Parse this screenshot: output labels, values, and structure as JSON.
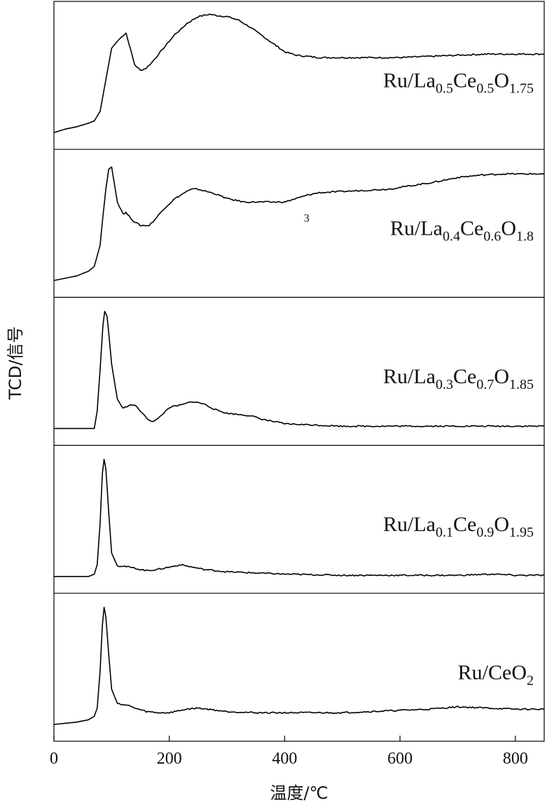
{
  "chart_data": {
    "type": "line",
    "xlabel": "温度/℃",
    "ylabel": "TCD/信号",
    "xlim": [
      0,
      850
    ],
    "xticks": [
      0,
      200,
      400,
      600,
      800
    ],
    "grid": false,
    "layout": "stacked panels",
    "series": [
      {
        "name": "Ru/La0.5Ce0.5O1.75",
        "label_parts": [
          {
            "t": "Ru/La",
            "sub": false
          },
          {
            "t": "0.5",
            "sub": true
          },
          {
            "t": "Ce",
            "sub": false
          },
          {
            "t": "0.5",
            "sub": true
          },
          {
            "t": "O",
            "sub": false
          },
          {
            "t": "1.75",
            "sub": true
          }
        ],
        "x": [
          0,
          20,
          40,
          60,
          70,
          80,
          90,
          100,
          110,
          120,
          125,
          130,
          140,
          150,
          160,
          170,
          180,
          190,
          200,
          210,
          220,
          230,
          240,
          250,
          260,
          270,
          280,
          300,
          320,
          340,
          360,
          380,
          400,
          420,
          440,
          460,
          480,
          500,
          540,
          580,
          600,
          650,
          700,
          750,
          800,
          850
        ],
        "y": [
          0.0,
          0.03,
          0.05,
          0.08,
          0.1,
          0.18,
          0.45,
          0.72,
          0.78,
          0.83,
          0.85,
          0.76,
          0.58,
          0.53,
          0.55,
          0.6,
          0.66,
          0.72,
          0.78,
          0.84,
          0.88,
          0.93,
          0.96,
          0.99,
          1.0,
          1.01,
          1.0,
          0.99,
          0.96,
          0.9,
          0.83,
          0.76,
          0.69,
          0.66,
          0.65,
          0.64,
          0.64,
          0.64,
          0.64,
          0.64,
          0.64,
          0.65,
          0.66,
          0.67,
          0.67,
          0.67
        ]
      },
      {
        "name": "Ru/La0.4Ce0.6O1.8",
        "label_parts": [
          {
            "t": "Ru/La",
            "sub": false
          },
          {
            "t": "0.4",
            "sub": true
          },
          {
            "t": "Ce",
            "sub": false
          },
          {
            "t": "0.6",
            "sub": true
          },
          {
            "t": "O",
            "sub": false
          },
          {
            "t": "1.8",
            "sub": true
          }
        ],
        "x": [
          0,
          20,
          40,
          60,
          70,
          80,
          85,
          90,
          95,
          100,
          105,
          110,
          120,
          125,
          130,
          140,
          150,
          165,
          175,
          190,
          210,
          230,
          240,
          250,
          280,
          300,
          330,
          360,
          400,
          420,
          440,
          460,
          500,
          540,
          580,
          620,
          660,
          700,
          740,
          780,
          810,
          850
        ],
        "y": [
          0.0,
          0.02,
          0.04,
          0.08,
          0.12,
          0.3,
          0.55,
          0.78,
          0.95,
          0.97,
          0.82,
          0.67,
          0.57,
          0.58,
          0.55,
          0.5,
          0.47,
          0.47,
          0.52,
          0.61,
          0.7,
          0.76,
          0.78,
          0.78,
          0.74,
          0.7,
          0.67,
          0.67,
          0.67,
          0.7,
          0.73,
          0.75,
          0.76,
          0.77,
          0.78,
          0.81,
          0.84,
          0.88,
          0.9,
          0.91,
          0.91,
          0.91
        ]
      },
      {
        "name": "Ru/La0.3Ce0.7O1.85",
        "label_parts": [
          {
            "t": "Ru/La",
            "sub": false
          },
          {
            "t": "0.3",
            "sub": true
          },
          {
            "t": "Ce",
            "sub": false
          },
          {
            "t": "0.7",
            "sub": true
          },
          {
            "t": "O",
            "sub": false
          },
          {
            "t": "1.85",
            "sub": true
          }
        ],
        "x": [
          0,
          20,
          40,
          60,
          70,
          75,
          80,
          85,
          88,
          92,
          95,
          100,
          110,
          120,
          130,
          140,
          150,
          160,
          170,
          180,
          190,
          200,
          220,
          240,
          260,
          280,
          300,
          320,
          340,
          360,
          380,
          400,
          450,
          500,
          600,
          700,
          800,
          850
        ],
        "y": [
          0.0,
          0.0,
          0.0,
          0.0,
          0.0,
          0.15,
          0.5,
          0.88,
          1.0,
          0.96,
          0.82,
          0.55,
          0.25,
          0.17,
          0.2,
          0.2,
          0.15,
          0.09,
          0.06,
          0.08,
          0.13,
          0.18,
          0.2,
          0.23,
          0.21,
          0.16,
          0.13,
          0.12,
          0.11,
          0.08,
          0.06,
          0.04,
          0.03,
          0.02,
          0.02,
          0.02,
          0.02,
          0.02
        ]
      },
      {
        "name": "Ru/La0.1Ce0.9O1.95",
        "label_parts": [
          {
            "t": "Ru/La",
            "sub": false
          },
          {
            "t": "0.1",
            "sub": true
          },
          {
            "t": "Ce",
            "sub": false
          },
          {
            "t": "0.9",
            "sub": true
          },
          {
            "t": "O",
            "sub": false
          },
          {
            "t": "1.95",
            "sub": true
          }
        ],
        "x": [
          0,
          20,
          40,
          60,
          70,
          75,
          80,
          84,
          87,
          90,
          95,
          100,
          110,
          120,
          140,
          160,
          180,
          200,
          220,
          240,
          260,
          300,
          350,
          400,
          500,
          600,
          700,
          760,
          800,
          850
        ],
        "y": [
          0.0,
          0.0,
          0.0,
          0.0,
          0.02,
          0.1,
          0.45,
          0.88,
          1.0,
          0.92,
          0.55,
          0.2,
          0.09,
          0.09,
          0.07,
          0.05,
          0.06,
          0.08,
          0.1,
          0.08,
          0.06,
          0.04,
          0.03,
          0.02,
          0.01,
          0.01,
          0.01,
          0.02,
          0.01,
          0.01
        ]
      },
      {
        "name": "Ru/CeO2",
        "label_parts": [
          {
            "t": "Ru/CeO",
            "sub": false
          },
          {
            "t": "2",
            "sub": true
          }
        ],
        "x": [
          0,
          20,
          40,
          60,
          70,
          75,
          80,
          84,
          87,
          90,
          95,
          100,
          110,
          120,
          130,
          140,
          160,
          180,
          200,
          230,
          250,
          300,
          350,
          400,
          450,
          500,
          550,
          600,
          650,
          700,
          750,
          800,
          850
        ],
        "y": [
          0.0,
          0.01,
          0.02,
          0.04,
          0.07,
          0.14,
          0.45,
          0.85,
          1.0,
          0.92,
          0.6,
          0.3,
          0.18,
          0.17,
          0.16,
          0.14,
          0.11,
          0.1,
          0.1,
          0.13,
          0.14,
          0.11,
          0.1,
          0.1,
          0.1,
          0.1,
          0.11,
          0.12,
          0.13,
          0.15,
          0.14,
          0.13,
          0.13
        ]
      }
    ],
    "annotations": [
      {
        "text": "3",
        "panel": 1,
        "x": 438,
        "y": 0.62
      }
    ]
  }
}
